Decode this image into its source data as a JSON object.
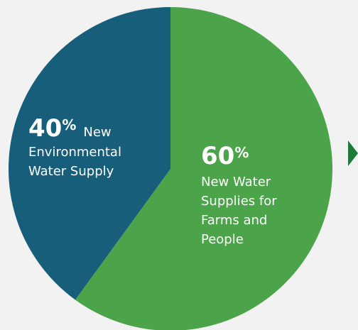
{
  "chart_data": {
    "type": "pie",
    "title": "",
    "slices": [
      {
        "label": "New Water Supplies for Farms and People",
        "value": 60,
        "color": "#4ba449",
        "pct_text": "60",
        "pct_sign": "%",
        "desc_lines": [
          "New Water",
          "Supplies for",
          "Farms and",
          "People"
        ]
      },
      {
        "label": "New Environmental Water Supply",
        "value": 40,
        "color": "#175e7b",
        "pct_text": "40",
        "pct_sign": "%",
        "desc_lines": [
          "New",
          "Environmental",
          "Water Supply"
        ]
      }
    ]
  },
  "arrow_color": "#1e7a3a"
}
